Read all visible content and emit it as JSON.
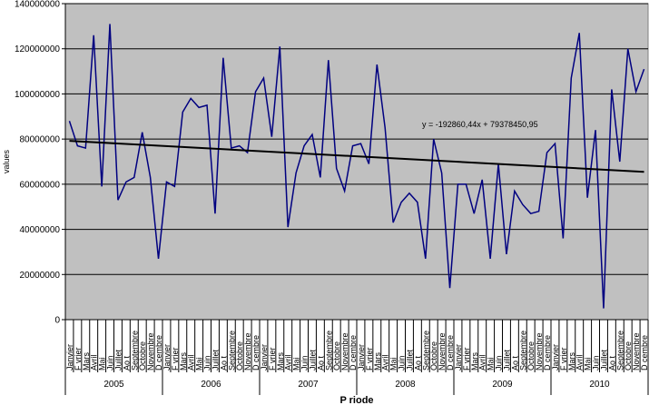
{
  "chart_data": {
    "type": "line",
    "y_label": "values",
    "x_label": "P riode",
    "categories": [
      "Janvier",
      "F vrier",
      "Mars",
      "Avril",
      "Mai",
      "Juin",
      "Juillet",
      "Ao t",
      "Septembre",
      "Octobre",
      "Novembre",
      "D cembre",
      "Janvier",
      "F vrier",
      "Mars",
      "Avril",
      "Mai",
      "Juin",
      "Juillet",
      "Ao t",
      "Septembre",
      "Octobre",
      "Novembre",
      "D cembre",
      "Janvier",
      "F vrier",
      "Mars",
      "Avril",
      "Mai",
      "Juin",
      "Juillet",
      "Ao t",
      "Septembre",
      "Octobre",
      "Novembre",
      "D cembre",
      "Janvier",
      "F vrier",
      "Mars",
      "Avril",
      "Mai",
      "Juin",
      "Juillet",
      "Ao t",
      "Septembre",
      "Octobre",
      "Novembre",
      "D cembre",
      "Janvier",
      "F vrier",
      "Mars",
      "Avril",
      "Mai",
      "Juin",
      "Juillet",
      "Ao t",
      "Septembre",
      "Octobre",
      "Novembre",
      "D cembre",
      "Janvier",
      "F vrier",
      "Mars",
      "Avril",
      "Mai",
      "Juin",
      "Juillet",
      "Ao t",
      "Septembre",
      "Octobre",
      "Novembre",
      "D cembre"
    ],
    "groups": [
      "2005",
      "2006",
      "2007",
      "2008",
      "2009",
      "2010"
    ],
    "series": [
      {
        "color": "#000080",
        "values": [
          88000000,
          77000000,
          76000000,
          126000000,
          59000000,
          131000000,
          53000000,
          61000000,
          63000000,
          83000000,
          63000000,
          27000000,
          61000000,
          59000000,
          92000000,
          98000000,
          94000000,
          95000000,
          47000000,
          116000000,
          76000000,
          77000000,
          74000000,
          101000000,
          107000000,
          81000000,
          121000000,
          41000000,
          65000000,
          77000000,
          82000000,
          63000000,
          115000000,
          67000000,
          57000000,
          77000000,
          78000000,
          69000000,
          113000000,
          85000000,
          43000000,
          52000000,
          56000000,
          52000000,
          27000000,
          80000000,
          65000000,
          14000000,
          60000000,
          60000000,
          47000000,
          62000000,
          27000000,
          69000000,
          29000000,
          57000000,
          51000000,
          47000000,
          48000000,
          74000000,
          78000000,
          36000000,
          107000000,
          127000000,
          54000000,
          84000000,
          5000000,
          102000000,
          70000000,
          120000000,
          101000000,
          111000000
        ]
      }
    ],
    "trendline": {
      "slope": -192860.44,
      "intercept": 79378450.95,
      "label": "y = -192860,44x + 79378450,95",
      "color": "#000000"
    },
    "ylim": [
      0,
      140000000
    ],
    "yticks": [
      0,
      20000000,
      40000000,
      60000000,
      80000000,
      100000000,
      120000000,
      140000000
    ],
    "grid": true,
    "plot_background": "#c0c0c0"
  }
}
